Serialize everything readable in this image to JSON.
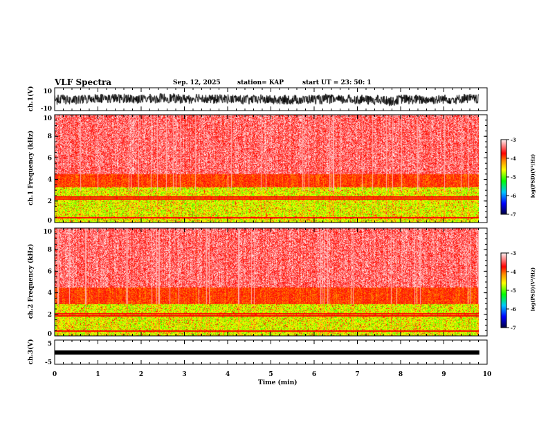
{
  "header": {
    "title": "VLF Spectra",
    "date": "Sep. 12, 2025",
    "station": "station= KAP",
    "start": "start  UT  =   23: 50: 1"
  },
  "chart_data": [
    {
      "type": "line",
      "name": "ch1-waveform",
      "ylabel": "ch.1(V)",
      "ylim": [
        -10,
        10
      ],
      "yticks": [
        "10",
        "-10"
      ]
    },
    {
      "type": "heatmap",
      "name": "ch1-spectrogram",
      "ylabel": "ch.1\nFrequency (kHz)",
      "ylim": [
        0,
        10
      ],
      "yticks": [
        "0",
        "2",
        "4",
        "6",
        "8",
        "10"
      ],
      "colorbar": {
        "label": "log(PSD)(V²/Hz)",
        "range": [
          -7,
          -3
        ],
        "ticks": [
          "-3",
          "-4",
          "-5",
          "-6",
          "-7"
        ]
      },
      "green_band_top_khz": 3.3,
      "lines_khz": [
        2.2,
        2.4,
        0.5
      ]
    },
    {
      "type": "heatmap",
      "name": "ch2-spectrogram",
      "ylabel": "ch.2\nFrequency (kHz)",
      "ylim": [
        0,
        10
      ],
      "yticks": [
        "0",
        "2",
        "4",
        "6",
        "8",
        "10"
      ],
      "colorbar": {
        "label": "log(PSD)(V²/Hz)",
        "range": [
          -7,
          -3
        ],
        "ticks": [
          "-3",
          "-4",
          "-5",
          "-6",
          "-7"
        ]
      },
      "green_band_top_khz": 3.0,
      "lines_khz": [
        1.9,
        2.1,
        0.5
      ]
    },
    {
      "type": "line",
      "name": "ch3-waveform",
      "ylabel": "ch.3(V)",
      "ylim": [
        -5,
        5
      ],
      "yticks": [
        "5",
        "-5"
      ],
      "level": 0
    }
  ],
  "xaxis": {
    "label": "Time (min)",
    "range": [
      0,
      10
    ],
    "data_end": 9.82,
    "ticks": [
      "0",
      "1",
      "2",
      "3",
      "4",
      "5",
      "6",
      "7",
      "8",
      "9",
      "10"
    ]
  },
  "labels": {
    "ch1": "ch.1(V)",
    "ch1_freq": "ch.1  Frequency (kHz)",
    "ch2_freq": "ch.2  Frequency (kHz)",
    "ch3": "ch.3(V)",
    "cbar": "log(PSD)(V²/Hz)"
  }
}
